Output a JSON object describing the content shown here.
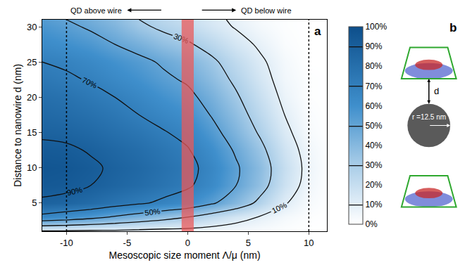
{
  "chart_data": {
    "type": "contour",
    "x_label": "Mesoscopic size moment Λ/μ (nm)",
    "y_label": "Distance to nanowire d (nm)",
    "x": [
      -12,
      -10,
      -8,
      -6,
      -4,
      -2,
      0,
      2,
      4,
      6,
      8,
      10,
      12
    ],
    "y": [
      1,
      3,
      5,
      7.5,
      10,
      12.5,
      15,
      17.5,
      20,
      22.5,
      25,
      27.5,
      30,
      31
    ],
    "z": [
      [
        8,
        8,
        7,
        7,
        6,
        5,
        5,
        4,
        3,
        2,
        1,
        0,
        0
      ],
      [
        65,
        60,
        55,
        48,
        42,
        36,
        30,
        22,
        15,
        9,
        4,
        1,
        0
      ],
      [
        88,
        86,
        82,
        77,
        72,
        67,
        62,
        52,
        40,
        26,
        11,
        3,
        0
      ],
      [
        94,
        93,
        90,
        86,
        82,
        77,
        72,
        63,
        50,
        36,
        18,
        5,
        0
      ],
      [
        96,
        95,
        92,
        88,
        84,
        79,
        74,
        65,
        52,
        38,
        20,
        6,
        0
      ],
      [
        93,
        92,
        89,
        85,
        81,
        76,
        71,
        61,
        48,
        34,
        17,
        5,
        0
      ],
      [
        88,
        87,
        84,
        80,
        76,
        71,
        66,
        55,
        42,
        28,
        13,
        3,
        0
      ],
      [
        84,
        82,
        79,
        75,
        70,
        65,
        60,
        49,
        37,
        23,
        10,
        2,
        0
      ],
      [
        80,
        78,
        74,
        70,
        65,
        59,
        54,
        44,
        32,
        19,
        7,
        1,
        0
      ],
      [
        75,
        72,
        69,
        64,
        59,
        53,
        48,
        38,
        27,
        15,
        5,
        1,
        0
      ],
      [
        70,
        68,
        64,
        59,
        54,
        48,
        42,
        33,
        22,
        12,
        4,
        0,
        0
      ],
      [
        63,
        60,
        56,
        50,
        44,
        37,
        32,
        24,
        15,
        8,
        2,
        0,
        0
      ],
      [
        57,
        53,
        48,
        42,
        33,
        27,
        22,
        15,
        9,
        4,
        1,
        0,
        0
      ],
      [
        54,
        50,
        45,
        39,
        30,
        24,
        19,
        13,
        8,
        3,
        1,
        0,
        0
      ]
    ],
    "xlim": [
      -12,
      11.5
    ],
    "ylim": [
      1,
      31
    ],
    "xticks": [
      -10,
      -5,
      0,
      5,
      10
    ],
    "yticks": [
      5,
      10,
      15,
      20,
      25,
      30
    ],
    "contour_levels": [
      10,
      30,
      50,
      70,
      90
    ],
    "colorbar_range": [
      0,
      100
    ],
    "colorbar_ticks": [
      {
        "value": 0,
        "label": "0%"
      },
      {
        "value": 10,
        "label": "10%"
      },
      {
        "value": 20,
        "label": "20%"
      },
      {
        "value": 30,
        "label": "30%"
      },
      {
        "value": 40,
        "label": "40%"
      },
      {
        "value": 50,
        "label": "50%"
      },
      {
        "value": 60,
        "label": "60%"
      },
      {
        "value": 70,
        "label": "70%"
      },
      {
        "value": 80,
        "label": "80%"
      },
      {
        "value": 90,
        "label": "90%"
      },
      {
        "value": 100,
        "label": "100%"
      }
    ],
    "reference_lines": [
      -10,
      10
    ],
    "highlight_band": [
      -0.5,
      0.5
    ],
    "annotations": [
      "QD above wire",
      "QD below wire"
    ],
    "panel_labels": [
      "a",
      "b"
    ],
    "diagram": {
      "distance_label": "d",
      "radius_label": "r =12.5 nm"
    }
  }
}
